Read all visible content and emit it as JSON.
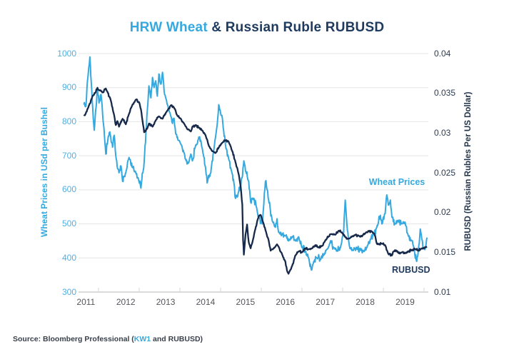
{
  "header": {
    "title_highlight": "HRW Wheat ",
    "title_rest": "& Russian Ruble RUBUSD"
  },
  "footer": {
    "source_prefix": "Source: Bloomberg Professional (",
    "source_ticker": "KW1",
    "source_suffix": " and RUBUSD)"
  },
  "colors": {
    "wheat_line": "#35A9DF",
    "ruble_line": "#16294A",
    "grid": "#E4E5E7",
    "axis_line": "#CFD0D3",
    "x_tick_mark": "#D5D6D8"
  },
  "chart_data": {
    "type": "line",
    "title": "HRW Wheat & Russian Ruble RUBUSD",
    "legend_position": "inline-annotations",
    "grid": "horizontal",
    "x_axis": {
      "range": [
        2010.78,
        2019.6
      ],
      "tick_labels": [
        "2011",
        "2012",
        "2013",
        "2014",
        "2015",
        "2016",
        "2017",
        "2018",
        "2019"
      ],
      "tick_values": [
        2011,
        2012,
        2013,
        2014,
        2015,
        2016,
        2017,
        2018,
        2019
      ]
    },
    "left_axis": {
      "title": "Wheat Prices in USd per Bushel",
      "range": [
        300,
        1000
      ],
      "tick_labels": [
        "1000",
        "900",
        "800",
        "700",
        "600",
        "500",
        "400",
        "300"
      ],
      "tick_values": [
        1000,
        900,
        800,
        700,
        600,
        500,
        400,
        300
      ]
    },
    "right_axis": {
      "title": "RUBUSD (Russian Rubles Per US Dollar)",
      "range": [
        0.01,
        0.04
      ],
      "tick_labels": [
        "0.04",
        "0.035",
        "0.03",
        "0.025",
        "0.02",
        "0.015",
        "0.01"
      ],
      "tick_values": [
        0.04,
        0.035,
        0.03,
        0.025,
        0.02,
        0.015,
        0.01
      ]
    },
    "series": [
      {
        "name": "Wheat Prices",
        "axis": "left",
        "color": "#35A9DF",
        "points": [
          [
            2010.95,
            850
          ],
          [
            2011.0,
            845
          ],
          [
            2011.04,
            920
          ],
          [
            2011.1,
            990
          ],
          [
            2011.16,
            860
          ],
          [
            2011.21,
            775
          ],
          [
            2011.29,
            900
          ],
          [
            2011.33,
            855
          ],
          [
            2011.38,
            880
          ],
          [
            2011.42,
            820
          ],
          [
            2011.5,
            705
          ],
          [
            2011.55,
            745
          ],
          [
            2011.6,
            770
          ],
          [
            2011.67,
            725
          ],
          [
            2011.71,
            760
          ],
          [
            2011.75,
            700
          ],
          [
            2011.83,
            650
          ],
          [
            2011.88,
            670
          ],
          [
            2011.92,
            625
          ],
          [
            2012.0,
            650
          ],
          [
            2012.08,
            695
          ],
          [
            2012.17,
            665
          ],
          [
            2012.25,
            650
          ],
          [
            2012.33,
            625
          ],
          [
            2012.38,
            605
          ],
          [
            2012.46,
            680
          ],
          [
            2012.54,
            835
          ],
          [
            2012.58,
            905
          ],
          [
            2012.63,
            870
          ],
          [
            2012.67,
            930
          ],
          [
            2012.71,
            900
          ],
          [
            2012.75,
            920
          ],
          [
            2012.79,
            875
          ],
          [
            2012.83,
            940
          ],
          [
            2012.88,
            910
          ],
          [
            2012.92,
            945
          ],
          [
            2012.96,
            890
          ],
          [
            2013.0,
            870
          ],
          [
            2013.08,
            835
          ],
          [
            2013.17,
            795
          ],
          [
            2013.21,
            810
          ],
          [
            2013.25,
            765
          ],
          [
            2013.33,
            745
          ],
          [
            2013.42,
            720
          ],
          [
            2013.5,
            690
          ],
          [
            2013.58,
            680
          ],
          [
            2013.63,
            705
          ],
          [
            2013.67,
            685
          ],
          [
            2013.75,
            730
          ],
          [
            2013.83,
            755
          ],
          [
            2013.92,
            720
          ],
          [
            2014.0,
            665
          ],
          [
            2014.04,
            620
          ],
          [
            2014.13,
            650
          ],
          [
            2014.21,
            720
          ],
          [
            2014.29,
            790
          ],
          [
            2014.33,
            850
          ],
          [
            2014.42,
            810
          ],
          [
            2014.5,
            730
          ],
          [
            2014.58,
            690
          ],
          [
            2014.63,
            665
          ],
          [
            2014.71,
            620
          ],
          [
            2014.75,
            575
          ],
          [
            2014.83,
            595
          ],
          [
            2014.88,
            610
          ],
          [
            2014.96,
            685
          ],
          [
            2015.0,
            655
          ],
          [
            2015.08,
            625
          ],
          [
            2015.13,
            565
          ],
          [
            2015.21,
            575
          ],
          [
            2015.29,
            540
          ],
          [
            2015.33,
            525
          ],
          [
            2015.42,
            500
          ],
          [
            2015.46,
            560
          ],
          [
            2015.5,
            625
          ],
          [
            2015.54,
            600
          ],
          [
            2015.58,
            570
          ],
          [
            2015.67,
            510
          ],
          [
            2015.75,
            490
          ],
          [
            2015.79,
            515
          ],
          [
            2015.83,
            475
          ],
          [
            2015.92,
            470
          ],
          [
            2016.0,
            465
          ],
          [
            2016.08,
            450
          ],
          [
            2016.17,
            462
          ],
          [
            2016.25,
            450
          ],
          [
            2016.33,
            462
          ],
          [
            2016.42,
            430
          ],
          [
            2016.5,
            420
          ],
          [
            2016.58,
            400
          ],
          [
            2016.65,
            365
          ],
          [
            2016.71,
            390
          ],
          [
            2016.79,
            400
          ],
          [
            2016.88,
            395
          ],
          [
            2016.96,
            410
          ],
          [
            2017.04,
            425
          ],
          [
            2017.13,
            450
          ],
          [
            2017.21,
            430
          ],
          [
            2017.29,
            420
          ],
          [
            2017.38,
            430
          ],
          [
            2017.46,
            475
          ],
          [
            2017.5,
            570
          ],
          [
            2017.54,
            500
          ],
          [
            2017.58,
            455
          ],
          [
            2017.63,
            430
          ],
          [
            2017.71,
            425
          ],
          [
            2017.79,
            430
          ],
          [
            2017.88,
            425
          ],
          [
            2017.96,
            420
          ],
          [
            2018.04,
            430
          ],
          [
            2018.13,
            455
          ],
          [
            2018.21,
            470
          ],
          [
            2018.29,
            490
          ],
          [
            2018.38,
            525
          ],
          [
            2018.42,
            500
          ],
          [
            2018.5,
            530
          ],
          [
            2018.54,
            585
          ],
          [
            2018.58,
            555
          ],
          [
            2018.63,
            570
          ],
          [
            2018.67,
            520
          ],
          [
            2018.75,
            500
          ],
          [
            2018.83,
            510
          ],
          [
            2018.92,
            500
          ],
          [
            2019.0,
            505
          ],
          [
            2019.08,
            465
          ],
          [
            2019.17,
            450
          ],
          [
            2019.21,
            435
          ],
          [
            2019.29,
            390
          ],
          [
            2019.33,
            420
          ],
          [
            2019.38,
            485
          ],
          [
            2019.42,
            455
          ],
          [
            2019.46,
            430
          ],
          [
            2019.5,
            425
          ],
          [
            2019.55,
            460
          ]
        ]
      },
      {
        "name": "RUBUSD",
        "axis": "right",
        "color": "#16294A",
        "points": [
          [
            2010.95,
            0.0323
          ],
          [
            2011.0,
            0.0325
          ],
          [
            2011.08,
            0.0335
          ],
          [
            2011.17,
            0.0347
          ],
          [
            2011.25,
            0.0352
          ],
          [
            2011.29,
            0.0357
          ],
          [
            2011.33,
            0.0354
          ],
          [
            2011.42,
            0.0351
          ],
          [
            2011.5,
            0.0356
          ],
          [
            2011.54,
            0.0352
          ],
          [
            2011.63,
            0.034
          ],
          [
            2011.71,
            0.0322
          ],
          [
            2011.75,
            0.031
          ],
          [
            2011.79,
            0.0315
          ],
          [
            2011.83,
            0.0308
          ],
          [
            2011.92,
            0.0318
          ],
          [
            2012.0,
            0.0311
          ],
          [
            2012.08,
            0.0324
          ],
          [
            2012.17,
            0.0336
          ],
          [
            2012.25,
            0.0342
          ],
          [
            2012.33,
            0.0339
          ],
          [
            2012.38,
            0.033
          ],
          [
            2012.42,
            0.0315
          ],
          [
            2012.46,
            0.0301
          ],
          [
            2012.54,
            0.0306
          ],
          [
            2012.58,
            0.0312
          ],
          [
            2012.67,
            0.0308
          ],
          [
            2012.75,
            0.0316
          ],
          [
            2012.83,
            0.0321
          ],
          [
            2012.92,
            0.0318
          ],
          [
            2013.0,
            0.0325
          ],
          [
            2013.08,
            0.0331
          ],
          [
            2013.13,
            0.0335
          ],
          [
            2013.21,
            0.0332
          ],
          [
            2013.29,
            0.0322
          ],
          [
            2013.38,
            0.0318
          ],
          [
            2013.46,
            0.0312
          ],
          [
            2013.54,
            0.0305
          ],
          [
            2013.63,
            0.0302
          ],
          [
            2013.67,
            0.0308
          ],
          [
            2013.75,
            0.031
          ],
          [
            2013.83,
            0.0307
          ],
          [
            2013.92,
            0.0303
          ],
          [
            2014.0,
            0.0297
          ],
          [
            2014.08,
            0.0284
          ],
          [
            2014.17,
            0.0277
          ],
          [
            2014.25,
            0.0275
          ],
          [
            2014.33,
            0.0282
          ],
          [
            2014.42,
            0.0288
          ],
          [
            2014.5,
            0.0291
          ],
          [
            2014.58,
            0.0289
          ],
          [
            2014.67,
            0.0277
          ],
          [
            2014.75,
            0.0263
          ],
          [
            2014.83,
            0.0248
          ],
          [
            2014.88,
            0.0232
          ],
          [
            2014.92,
            0.021
          ],
          [
            2014.94,
            0.0165
          ],
          [
            2014.96,
            0.0147
          ],
          [
            2015.0,
            0.0172
          ],
          [
            2015.04,
            0.0185
          ],
          [
            2015.08,
            0.0163
          ],
          [
            2015.13,
            0.0155
          ],
          [
            2015.17,
            0.0162
          ],
          [
            2015.25,
            0.018
          ],
          [
            2015.33,
            0.0195
          ],
          [
            2015.38,
            0.0197
          ],
          [
            2015.46,
            0.0185
          ],
          [
            2015.5,
            0.0178
          ],
          [
            2015.58,
            0.0165
          ],
          [
            2015.63,
            0.0152
          ],
          [
            2015.71,
            0.0155
          ],
          [
            2015.79,
            0.016
          ],
          [
            2015.83,
            0.0157
          ],
          [
            2015.92,
            0.0147
          ],
          [
            2016.0,
            0.0138
          ],
          [
            2016.04,
            0.0127
          ],
          [
            2016.08,
            0.0123
          ],
          [
            2016.17,
            0.0133
          ],
          [
            2016.25,
            0.0146
          ],
          [
            2016.33,
            0.0151
          ],
          [
            2016.42,
            0.015
          ],
          [
            2016.5,
            0.0155
          ],
          [
            2016.58,
            0.0154
          ],
          [
            2016.67,
            0.0155
          ],
          [
            2016.75,
            0.0159
          ],
          [
            2016.83,
            0.0156
          ],
          [
            2016.92,
            0.0158
          ],
          [
            2017.0,
            0.0165
          ],
          [
            2017.08,
            0.017
          ],
          [
            2017.17,
            0.0173
          ],
          [
            2017.25,
            0.0172
          ],
          [
            2017.33,
            0.0177
          ],
          [
            2017.42,
            0.0175
          ],
          [
            2017.5,
            0.0169
          ],
          [
            2017.58,
            0.0167
          ],
          [
            2017.67,
            0.017
          ],
          [
            2017.75,
            0.0172
          ],
          [
            2017.83,
            0.0171
          ],
          [
            2017.92,
            0.017
          ],
          [
            2018.0,
            0.0174
          ],
          [
            2018.08,
            0.0177
          ],
          [
            2018.17,
            0.0176
          ],
          [
            2018.25,
            0.0171
          ],
          [
            2018.29,
            0.0161
          ],
          [
            2018.33,
            0.016
          ],
          [
            2018.42,
            0.0161
          ],
          [
            2018.5,
            0.0159
          ],
          [
            2018.58,
            0.0148
          ],
          [
            2018.67,
            0.0146
          ],
          [
            2018.71,
            0.0151
          ],
          [
            2018.79,
            0.0152
          ],
          [
            2018.83,
            0.0149
          ],
          [
            2018.92,
            0.015
          ],
          [
            2019.0,
            0.0149
          ],
          [
            2019.08,
            0.0151
          ],
          [
            2019.17,
            0.0153
          ],
          [
            2019.25,
            0.0154
          ],
          [
            2019.33,
            0.0152
          ],
          [
            2019.42,
            0.0155
          ],
          [
            2019.5,
            0.0156
          ],
          [
            2019.55,
            0.0157
          ]
        ]
      }
    ],
    "annotations": [
      {
        "text": "Wheat Prices",
        "color": "#35A9DF"
      },
      {
        "text": "RUBUSD",
        "color": "#1E3A5F"
      }
    ]
  }
}
